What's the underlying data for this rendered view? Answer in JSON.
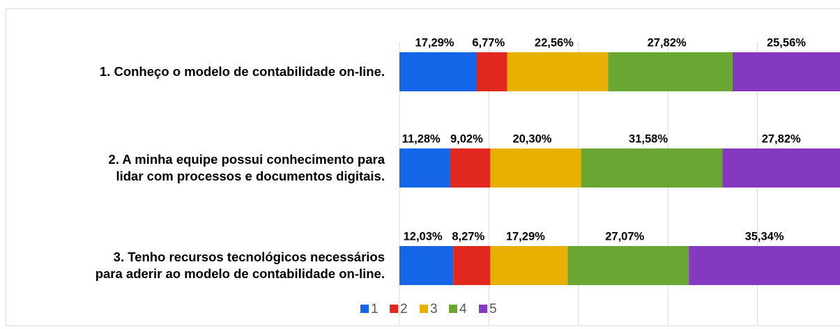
{
  "chart_data": {
    "type": "stacked-barh",
    "categories": [
      "1. Conheço o modelo de contabilidade on-line.",
      "2. A minha equipe possui conhecimento para\nlidar com processos e documentos digitais.",
      "3. Tenho recursos tecnológicos necessários\npara aderir ao modelo de contabilidade on-line."
    ],
    "series": [
      {
        "name": "1",
        "color": "#1565e8",
        "values": [
          17.29,
          11.28,
          12.03
        ],
        "value_labels": [
          "17,29%",
          "11,28%",
          "12,03%"
        ]
      },
      {
        "name": "2",
        "color": "#e0281e",
        "values": [
          6.77,
          9.02,
          8.27
        ],
        "value_labels": [
          "6,77%",
          "9,02%",
          "8,27%"
        ]
      },
      {
        "name": "3",
        "color": "#e8b000",
        "values": [
          22.56,
          20.3,
          17.29
        ],
        "value_labels": [
          "22,56%",
          "20,30%",
          "17,29%"
        ]
      },
      {
        "name": "4",
        "color": "#6aa732",
        "values": [
          27.82,
          31.58,
          27.07
        ],
        "value_labels": [
          "27,82%",
          "31,58%",
          "27,07%"
        ]
      },
      {
        "name": "5",
        "color": "#8439c0",
        "values": [
          25.56,
          27.82,
          35.34
        ],
        "value_labels": [
          "25,56%",
          "27,82%",
          "35,34%"
        ]
      }
    ],
    "xlim": [
      0,
      100
    ],
    "xticks": [
      0,
      20,
      40,
      60,
      80,
      100
    ],
    "grid": true,
    "legend": "bottom"
  }
}
